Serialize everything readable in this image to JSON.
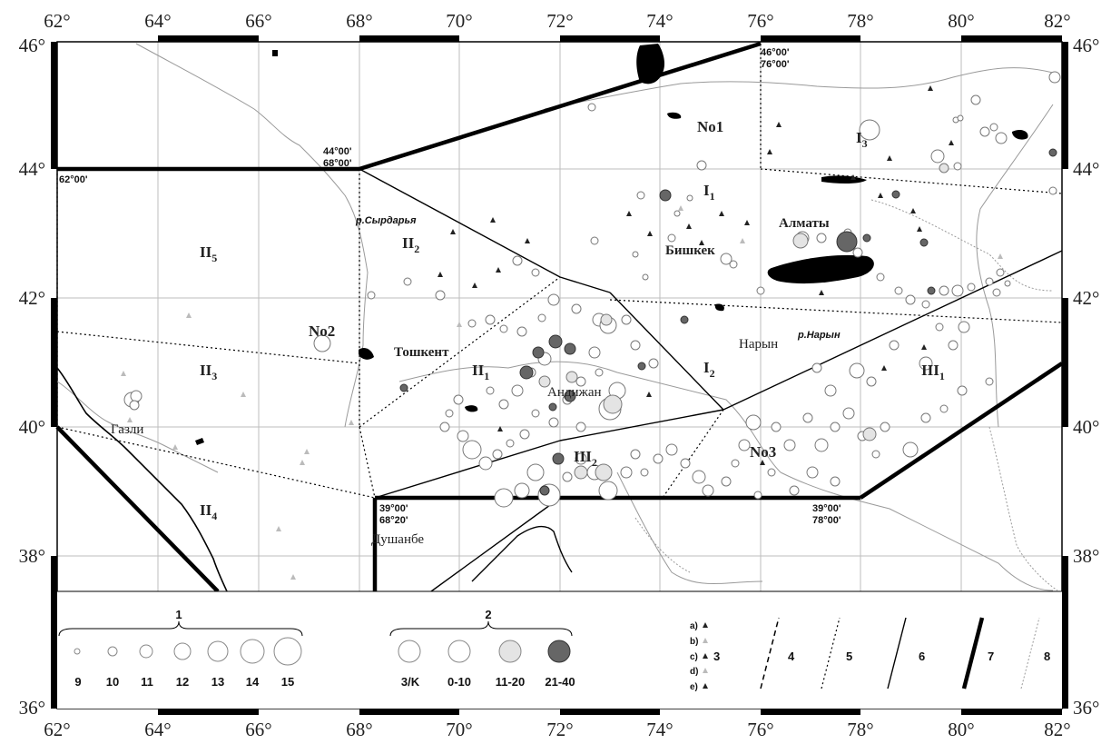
{
  "axes": {
    "lon_labels": [
      "62°",
      "64°",
      "66°",
      "68°",
      "70°",
      "72°",
      "74°",
      "76°",
      "78°",
      "80°",
      "82°"
    ],
    "lat_labels": [
      "36°",
      "38°",
      "40°",
      "42°",
      "44°",
      "46°"
    ]
  },
  "zones": {
    "i1": {
      "main": "I",
      "sub": "1"
    },
    "i2": {
      "main": "I",
      "sub": "2"
    },
    "i3": {
      "main": "I",
      "sub": "3"
    },
    "ii1": {
      "main": "II",
      "sub": "1"
    },
    "ii2": {
      "main": "II",
      "sub": "2"
    },
    "ii3": {
      "main": "II",
      "sub": "3"
    },
    "ii4": {
      "main": "II",
      "sub": "4"
    },
    "ii5": {
      "main": "II",
      "sub": "5"
    },
    "iii1": {
      "main": "III",
      "sub": "1"
    },
    "iii2": {
      "main": "III",
      "sub": "2"
    },
    "no1": "No1",
    "no2": "No2",
    "no3": "No3"
  },
  "cities": {
    "almaty": "Алматы",
    "bishkek": "Бишкек",
    "naryn": "Нарын",
    "tashkent": "Тошкент",
    "andijan": "Андижан",
    "gazli": "Газли",
    "dushanbe": "Душанбе"
  },
  "rivers": {
    "syrdarya": "р.Сырдарья",
    "naryn": "р.Нарын"
  },
  "coords": {
    "c1_a": "46°00'",
    "c1_b": "76°00'",
    "c2_a": "44°00'",
    "c2_b": "68°00'",
    "c3": "62°00'",
    "c4_a": "39°00'",
    "c4_b": "68°20'",
    "c5_a": "39°00'",
    "c5_b": "78°00'"
  },
  "legend": {
    "group1_title": "1",
    "group1_labels": [
      "9",
      "10",
      "11",
      "12",
      "13",
      "14",
      "15"
    ],
    "group2_title": "2",
    "group2_labels": [
      "3/K",
      "0-10",
      "11-20",
      "21-40"
    ],
    "sym_a": "a)",
    "sym_b": "b)",
    "sym_c": "c)",
    "sym_d": "d)",
    "sym_e": "e)",
    "n3": "3",
    "n4": "4",
    "n5": "5",
    "n6": "6",
    "n7": "7",
    "n8": "8"
  },
  "colors": {
    "frame": "#000000",
    "lake": "#000000",
    "gray_marker": "#555555",
    "light_marker": "#e6e6e6",
    "hatch_dark": "#666666"
  }
}
